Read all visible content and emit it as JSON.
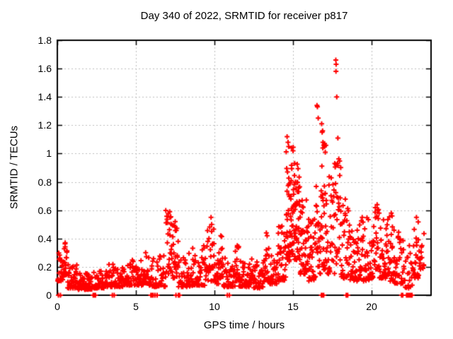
{
  "title": "Day 340 of 2022, SRMTID for receiver p817",
  "x_axis": {
    "label": "GPS time / hours",
    "ticks": [
      {
        "value": 0,
        "label": "0"
      },
      {
        "value": 5,
        "label": "5"
      },
      {
        "value": 10,
        "label": "10"
      },
      {
        "value": 15,
        "label": "15"
      },
      {
        "value": 20,
        "label": "20"
      }
    ]
  },
  "y_axis": {
    "label": "SRMTID / TECUs",
    "ticks": [
      {
        "value": 0,
        "label": "0"
      },
      {
        "value": 0.2,
        "label": "0.2"
      },
      {
        "value": 0.4,
        "label": "0.4"
      },
      {
        "value": 0.6,
        "label": "0.6"
      },
      {
        "value": 0.8,
        "label": "0.8"
      },
      {
        "value": 1,
        "label": "1"
      },
      {
        "value": 1.2,
        "label": "1.2"
      },
      {
        "value": 1.4,
        "label": "1.4"
      },
      {
        "value": 1.6,
        "label": "1.6"
      },
      {
        "value": 1.8,
        "label": "1.8"
      }
    ]
  },
  "style": {
    "marker_color": "#ff0000",
    "grid_color": "#bdbdbd",
    "border_color": "#000000",
    "background": "#ffffff"
  },
  "chart_data": {
    "type": "scatter",
    "title": "Day 340 of 2022, SRMTID for receiver p817",
    "xlabel": "GPS time / hours",
    "ylabel": "SRMTID / TECUs",
    "xlim": [
      0,
      23.78
    ],
    "ylim": [
      0,
      1.8
    ],
    "grid": true,
    "legend": "none",
    "marker": "plus",
    "series_name": "SRMTID",
    "seed": 42,
    "bands_note": "dense noisy band encoded as [x_start_hr, x_end_hr, n_points, y_min, y_max, low_bias_exponent]; points concentrate near y_min",
    "bands": [
      [
        0.02,
        0.35,
        22,
        0.1,
        0.3,
        1.8
      ],
      [
        0.38,
        0.62,
        20,
        0.12,
        0.37,
        1.5
      ],
      [
        0.65,
        1.3,
        42,
        0.05,
        0.22,
        2.2
      ],
      [
        1.3,
        2.25,
        55,
        0.04,
        0.16,
        2.0
      ],
      [
        2.3,
        3.2,
        48,
        0.05,
        0.17,
        2.0
      ],
      [
        3.2,
        4.2,
        55,
        0.06,
        0.22,
        2.2
      ],
      [
        4.2,
        5.1,
        50,
        0.07,
        0.25,
        2.2
      ],
      [
        5.1,
        6.0,
        50,
        0.07,
        0.3,
        2.4
      ],
      [
        6.0,
        6.9,
        48,
        0.06,
        0.28,
        2.4
      ],
      [
        6.9,
        7.3,
        26,
        0.15,
        0.6,
        1.6
      ],
      [
        7.3,
        7.7,
        26,
        0.12,
        0.52,
        1.8
      ],
      [
        7.7,
        8.6,
        48,
        0.06,
        0.3,
        2.4
      ],
      [
        8.6,
        9.55,
        50,
        0.07,
        0.35,
        2.5
      ],
      [
        9.55,
        10.0,
        26,
        0.1,
        0.55,
        2.0
      ],
      [
        10.0,
        10.3,
        16,
        0.08,
        0.3,
        2.2
      ],
      [
        10.3,
        10.55,
        16,
        0.12,
        0.43,
        1.6
      ],
      [
        10.55,
        11.3,
        40,
        0.06,
        0.28,
        2.3
      ],
      [
        11.3,
        11.55,
        16,
        0.1,
        0.36,
        1.6
      ],
      [
        11.55,
        12.2,
        38,
        0.06,
        0.25,
        2.2
      ],
      [
        12.2,
        12.5,
        16,
        0.08,
        0.31,
        1.8
      ],
      [
        12.5,
        13.15,
        38,
        0.05,
        0.25,
        2.2
      ],
      [
        13.15,
        13.5,
        22,
        0.1,
        0.44,
        1.8
      ],
      [
        13.5,
        14.0,
        30,
        0.08,
        0.33,
        2.0
      ],
      [
        14.0,
        14.55,
        34,
        0.1,
        0.5,
        1.8
      ],
      [
        14.55,
        15.05,
        60,
        0.22,
        1.05,
        1.3
      ],
      [
        15.05,
        15.45,
        48,
        0.25,
        0.95,
        1.5
      ],
      [
        15.45,
        15.95,
        42,
        0.15,
        0.68,
        1.7
      ],
      [
        15.95,
        16.45,
        38,
        0.1,
        0.55,
        1.9
      ],
      [
        16.45,
        16.78,
        24,
        0.15,
        0.85,
        1.5
      ],
      [
        16.78,
        17.15,
        34,
        0.18,
        1.08,
        1.4
      ],
      [
        17.15,
        17.65,
        32,
        0.15,
        0.85,
        1.6
      ],
      [
        17.65,
        18.05,
        30,
        0.22,
        1.0,
        1.4
      ],
      [
        18.05,
        18.55,
        30,
        0.12,
        0.7,
        1.8
      ],
      [
        18.55,
        19.1,
        34,
        0.1,
        0.5,
        2.0
      ],
      [
        19.1,
        19.85,
        44,
        0.1,
        0.55,
        2.0
      ],
      [
        19.85,
        20.2,
        22,
        0.12,
        0.5,
        1.8
      ],
      [
        20.2,
        20.5,
        22,
        0.18,
        0.62,
        1.5
      ],
      [
        20.5,
        21.0,
        34,
        0.12,
        0.55,
        1.8
      ],
      [
        21.0,
        21.45,
        28,
        0.1,
        0.57,
        1.6
      ],
      [
        21.45,
        22.05,
        34,
        0.08,
        0.45,
        1.9
      ],
      [
        22.05,
        22.65,
        22,
        0.05,
        0.35,
        2.0
      ],
      [
        22.65,
        23.05,
        26,
        0.12,
        0.53,
        1.5
      ],
      [
        23.05,
        23.35,
        14,
        0.18,
        0.5,
        1.7
      ]
    ],
    "peaks_note": "individually readable extreme points [hour, TECUs]",
    "peaks": [
      [
        0.5,
        0.37
      ],
      [
        5.62,
        0.3
      ],
      [
        7.15,
        0.59
      ],
      [
        7.18,
        0.55
      ],
      [
        7.5,
        0.52
      ],
      [
        9.78,
        0.55
      ],
      [
        9.82,
        0.5
      ],
      [
        10.4,
        0.42
      ],
      [
        11.45,
        0.35
      ],
      [
        13.3,
        0.44
      ],
      [
        13.35,
        0.42
      ],
      [
        14.2,
        0.48
      ],
      [
        14.62,
        1.12
      ],
      [
        14.68,
        1.08
      ],
      [
        14.72,
        1.05
      ],
      [
        14.9,
        1.04
      ],
      [
        15.0,
        1.02
      ],
      [
        16.52,
        1.34
      ],
      [
        16.55,
        1.33
      ],
      [
        16.6,
        1.25
      ],
      [
        16.82,
        1.21
      ],
      [
        16.88,
        1.16
      ],
      [
        16.85,
        1.15
      ],
      [
        16.9,
        1.08
      ],
      [
        16.95,
        1.06
      ],
      [
        17.0,
        1.05
      ],
      [
        17.05,
        1.01
      ],
      [
        17.72,
        1.66
      ],
      [
        17.74,
        1.63
      ],
      [
        17.73,
        1.58
      ],
      [
        17.78,
        1.4
      ],
      [
        17.85,
        1.11
      ],
      [
        19.4,
        0.55
      ],
      [
        20.35,
        0.64
      ],
      [
        20.38,
        0.6
      ],
      [
        21.25,
        0.58
      ],
      [
        21.3,
        0.56
      ],
      [
        22.4,
        0.35
      ],
      [
        22.85,
        0.55
      ]
    ],
    "zeros_note": "hours where SRMTID = 0 (markers sitting on the x-axis; tight runs merge into solid blocks)",
    "zeros": [
      0.07,
      0.2,
      2.28,
      2.33,
      2.38,
      2.43,
      3.5,
      3.62,
      5.95,
      6.0,
      6.05,
      6.1,
      6.22,
      6.35,
      7.55,
      7.7,
      7.78,
      10.82,
      10.95,
      16.8,
      16.85,
      16.9,
      16.95,
      18.38,
      18.43,
      18.48,
      21.9,
      21.98,
      22.22,
      22.27,
      22.32,
      22.37,
      22.42,
      22.47,
      22.52,
      22.57
    ]
  }
}
